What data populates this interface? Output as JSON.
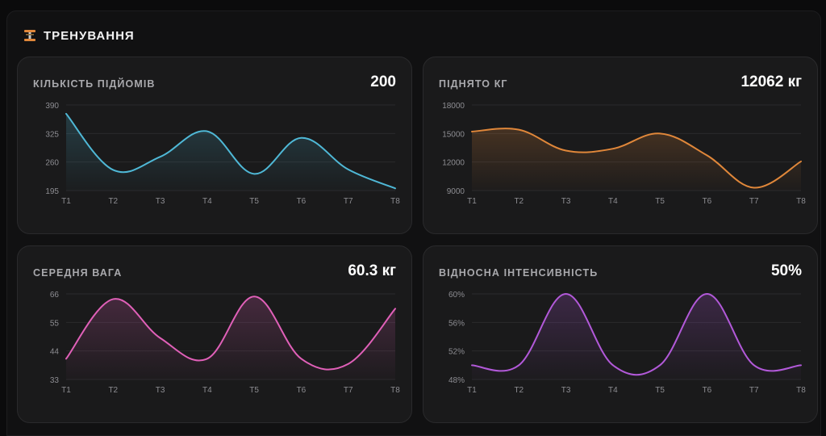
{
  "section": {
    "title": "ТРЕНУВАННЯ",
    "icon": "dumbbell-icon"
  },
  "cards": [
    {
      "label": "КІЛЬКІСТЬ ПІДЙОМІВ",
      "value": "200"
    },
    {
      "label": "ПІДНЯТО КГ",
      "value": "12062 кг"
    },
    {
      "label": "СЕРЕДНЯ ВАГА",
      "value": "60.3 кг"
    },
    {
      "label": "ВІДНОСНА ІНТЕНСИВНІСТЬ",
      "value": "50%"
    }
  ],
  "colors": {
    "lifts": "#4fb8d6",
    "kg": "#e0873a",
    "avg_weight": "#e060b8",
    "intensity": "#b259d9"
  },
  "chart_data": [
    {
      "type": "line",
      "categories": [
        "T1",
        "T2",
        "T3",
        "T4",
        "T5",
        "T6",
        "T7",
        "T8"
      ],
      "series": [
        {
          "values": [
            370,
            242,
            272,
            330,
            233,
            315,
            243,
            200
          ]
        }
      ],
      "ylim": [
        195,
        390
      ],
      "yticks": [
        "390",
        "325",
        "260",
        "195"
      ],
      "grid": true
    },
    {
      "type": "line",
      "categories": [
        "T1",
        "T2",
        "T3",
        "T4",
        "T5",
        "T6",
        "T7",
        "T8"
      ],
      "series": [
        {
          "values": [
            15200,
            15400,
            13200,
            13400,
            15000,
            12700,
            9300,
            12062
          ]
        }
      ],
      "ylim": [
        9000,
        18000
      ],
      "yticks": [
        "18000",
        "15000",
        "12000",
        "9000"
      ],
      "grid": true
    },
    {
      "type": "line",
      "categories": [
        "T1",
        "T2",
        "T3",
        "T4",
        "T5",
        "T6",
        "T7",
        "T8"
      ],
      "series": [
        {
          "values": [
            41,
            64,
            49,
            41,
            65,
            41,
            39,
            60.3
          ]
        }
      ],
      "ylim": [
        33,
        66
      ],
      "yticks": [
        "66",
        "55",
        "44",
        "33"
      ],
      "grid": true
    },
    {
      "type": "line",
      "categories": [
        "T1",
        "T2",
        "T3",
        "T4",
        "T5",
        "T6",
        "T7",
        "T8"
      ],
      "series": [
        {
          "values": [
            50,
            50,
            60,
            50,
            50,
            60,
            50,
            50
          ]
        }
      ],
      "ylim": [
        48,
        60
      ],
      "yticks": [
        "60%",
        "56%",
        "52%",
        "48%"
      ],
      "grid": true
    }
  ]
}
